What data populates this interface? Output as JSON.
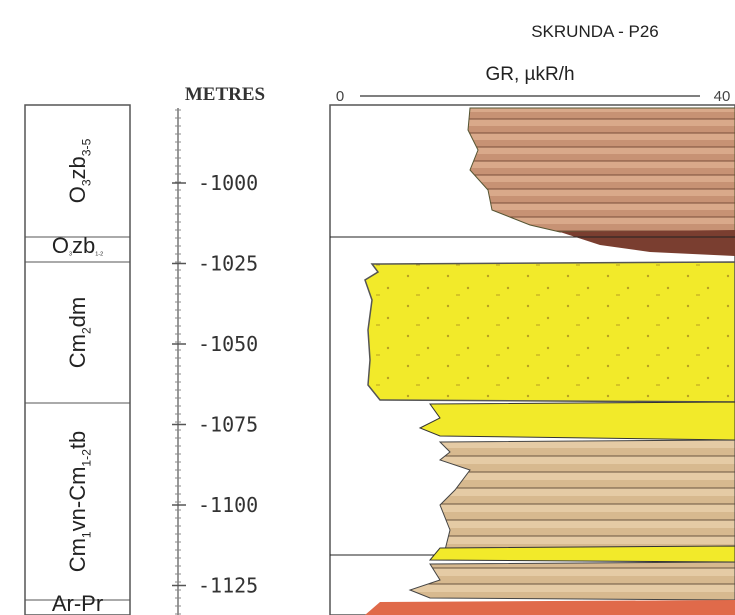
{
  "header": {
    "title": "SKRUNDA - P26",
    "gr_axis": {
      "label": "GR, µkR/h",
      "min_label": "0",
      "max_label": "40"
    }
  },
  "depth_axis": {
    "label": "METRES",
    "ticks": [
      "-1000",
      "-1025",
      "-1050",
      "-1075",
      "-1100",
      "-1125"
    ]
  },
  "formations": [
    {
      "parts": [
        "O",
        "3",
        "zb",
        "3-5"
      ]
    },
    {
      "parts": [
        "O",
        "3",
        "zb",
        "1-2"
      ]
    },
    {
      "parts": [
        "Cm",
        "2",
        "dm"
      ]
    },
    {
      "parts": [
        "Cm",
        "1",
        "vn-Cm",
        "1-2",
        "tb"
      ]
    },
    {
      "parts": [
        "Ar-Pr"
      ]
    }
  ]
}
